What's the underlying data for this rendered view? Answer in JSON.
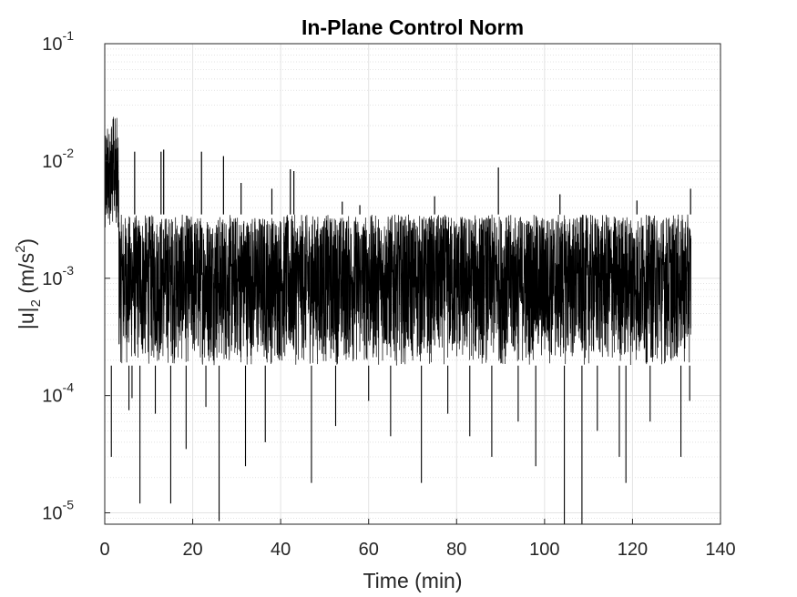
{
  "chart_data": {
    "type": "line",
    "title": "In-Plane Control Norm",
    "xlabel": "Time (min)",
    "ylabel": {
      "base": "|u|",
      "sub": "2",
      "unit_open": " (m/s",
      "sup": "2",
      "unit_close": ")"
    },
    "xlim": [
      0,
      140
    ],
    "ylim": [
      8e-06,
      0.1
    ],
    "yscale": "log",
    "grid": true,
    "minor_grid": true,
    "color": "#000000",
    "x_ticks": [
      {
        "value": 0,
        "label": "0"
      },
      {
        "value": 20,
        "label": "20"
      },
      {
        "value": 40,
        "label": "40"
      },
      {
        "value": 60,
        "label": "60"
      },
      {
        "value": 80,
        "label": "80"
      },
      {
        "value": 100,
        "label": "100"
      },
      {
        "value": 120,
        "label": "120"
      },
      {
        "value": 140,
        "label": "140"
      }
    ],
    "y_ticks": [
      {
        "value": 0.1,
        "base": "10",
        "exp": "-1"
      },
      {
        "value": 0.01,
        "base": "10",
        "exp": "-2"
      },
      {
        "value": 0.001,
        "base": "10",
        "exp": "-3"
      },
      {
        "value": 0.0001,
        "base": "10",
        "exp": "-4"
      },
      {
        "value": 1e-05,
        "base": "10",
        "exp": "-5"
      }
    ],
    "series": [
      {
        "x_range": [
          0,
          133.3
        ],
        "band": {
          "upper": 0.0035,
          "lower": 0.00018
        },
        "initial_transient": {
          "x_range": [
            0,
            3.2
          ],
          "peak": 0.024
        },
        "spikes": [
          {
            "x": 6.8,
            "y": 0.012
          },
          {
            "x": 12.8,
            "y": 0.012
          },
          {
            "x": 13.4,
            "y": 0.0125
          },
          {
            "x": 22.0,
            "y": 0.012
          },
          {
            "x": 27.0,
            "y": 0.011
          },
          {
            "x": 31.0,
            "y": 0.0065
          },
          {
            "x": 38.0,
            "y": 0.0058
          },
          {
            "x": 42.2,
            "y": 0.0085
          },
          {
            "x": 43.0,
            "y": 0.0082
          },
          {
            "x": 54.0,
            "y": 0.0045
          },
          {
            "x": 58.0,
            "y": 0.0042
          },
          {
            "x": 75.0,
            "y": 0.005
          },
          {
            "x": 89.5,
            "y": 0.0088
          },
          {
            "x": 103.5,
            "y": 0.0052
          },
          {
            "x": 121.0,
            "y": 0.0046
          },
          {
            "x": 133.2,
            "y": 0.0058
          }
        ],
        "dips": [
          {
            "x": 1.5,
            "y": 3e-05
          },
          {
            "x": 5.5,
            "y": 7.5e-05
          },
          {
            "x": 6.2,
            "y": 9.5e-05
          },
          {
            "x": 8.0,
            "y": 1.2e-05
          },
          {
            "x": 11.5,
            "y": 7e-05
          },
          {
            "x": 15.0,
            "y": 1.2e-05
          },
          {
            "x": 18.5,
            "y": 3.5e-05
          },
          {
            "x": 23.0,
            "y": 8e-05
          },
          {
            "x": 26.0,
            "y": 8.5e-06
          },
          {
            "x": 32.0,
            "y": 2.5e-05
          },
          {
            "x": 36.5,
            "y": 4e-05
          },
          {
            "x": 47.0,
            "y": 1.8e-05
          },
          {
            "x": 52.5,
            "y": 5.5e-05
          },
          {
            "x": 60.0,
            "y": 9e-05
          },
          {
            "x": 65.0,
            "y": 4.5e-05
          },
          {
            "x": 72.0,
            "y": 1.8e-05
          },
          {
            "x": 78.0,
            "y": 7e-05
          },
          {
            "x": 83.0,
            "y": 4.5e-05
          },
          {
            "x": 88.0,
            "y": 3e-05
          },
          {
            "x": 94.0,
            "y": 6e-05
          },
          {
            "x": 98.0,
            "y": 2.5e-05
          },
          {
            "x": 104.5,
            "y": 8e-06
          },
          {
            "x": 108.5,
            "y": 8e-06
          },
          {
            "x": 112.0,
            "y": 5e-05
          },
          {
            "x": 117.0,
            "y": 3e-05
          },
          {
            "x": 118.5,
            "y": 1.8e-05
          },
          {
            "x": 124.0,
            "y": 6e-05
          },
          {
            "x": 131.0,
            "y": 3e-05
          },
          {
            "x": 133.0,
            "y": 9e-05
          }
        ]
      }
    ]
  }
}
